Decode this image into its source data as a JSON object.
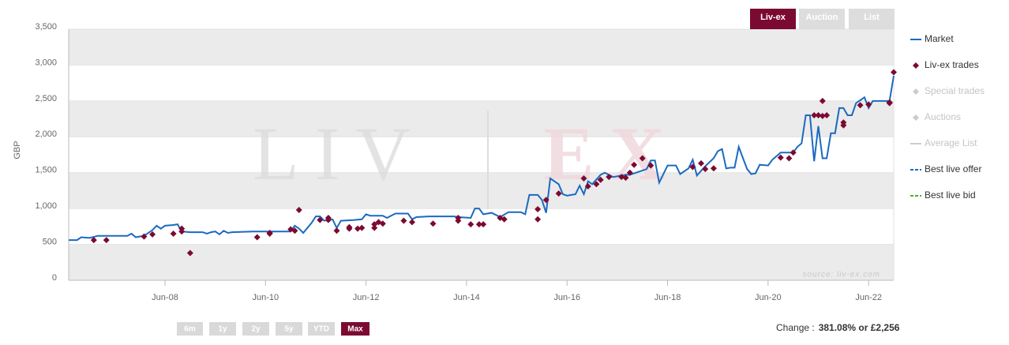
{
  "tabs": [
    "Liv-ex",
    "Auction",
    "List"
  ],
  "active_tab": 0,
  "ranges": [
    "6m",
    "1y",
    "2y",
    "5y",
    "YTD",
    "Max"
  ],
  "active_range": 5,
  "change": {
    "label": "Change :",
    "value": "381.08% or £2,256"
  },
  "chart_data": {
    "type": "line",
    "ylabel": "GBP",
    "watermark": [
      "LIV",
      "EX"
    ],
    "source": "source: liv-ex.com",
    "ylim": [
      0,
      3500
    ],
    "yticks": [
      0,
      500,
      {
        "value": 1000,
        "label": "1,000"
      },
      {
        "value": 1500,
        "label": "1,500"
      },
      {
        "value": 2000,
        "label": "2,000"
      },
      {
        "value": 2500,
        "label": "2,500"
      },
      {
        "value": 3000,
        "label": "3,000"
      },
      {
        "value": 3500,
        "label": "3,500"
      }
    ],
    "xlim": [
      "2006-07",
      "2022-12"
    ],
    "xticks": [
      {
        "value": "2008-06",
        "label": "Jun-08"
      },
      {
        "value": "2010-06",
        "label": "Jun-10"
      },
      {
        "value": "2012-06",
        "label": "Jun-12"
      },
      {
        "value": "2014-06",
        "label": "Jun-14"
      },
      {
        "value": "2016-06",
        "label": "Jun-16"
      },
      {
        "value": "2018-06",
        "label": "Jun-18"
      },
      {
        "value": "2020-06",
        "label": "Jun-20"
      },
      {
        "value": "2022-06",
        "label": "Jun-22"
      }
    ],
    "bands": "#ebebeb",
    "series": [
      {
        "name": "Market",
        "color": "#1b6ac0",
        "style": "line",
        "x": [
          "2006-07",
          "2006-09",
          "2006-10",
          "2006-12",
          "2007-02",
          "2007-09",
          "2007-10",
          "2007-11",
          "2008-01",
          "2008-03",
          "2008-04",
          "2008-05",
          "2008-06",
          "2008-08",
          "2008-09",
          "2008-10",
          "2008-12",
          "2009-03",
          "2009-04",
          "2009-05",
          "2009-06",
          "2009-07",
          "2009-08",
          "2009-09",
          "2009-10",
          "2010-03",
          "2010-05",
          "2010-12",
          "2011-01",
          "2011-02",
          "2011-03",
          "2011-05",
          "2011-06",
          "2011-07",
          "2011-08",
          "2011-10",
          "2011-11",
          "2011-12",
          "2012-03",
          "2012-05",
          "2012-06",
          "2012-07",
          "2012-10",
          "2012-11",
          "2013-01",
          "2013-04",
          "2013-05",
          "2013-06",
          "2013-09",
          "2014-03",
          "2014-04",
          "2014-07",
          "2014-08",
          "2014-09",
          "2014-10",
          "2014-12",
          "2015-02",
          "2015-04",
          "2015-07",
          "2015-08",
          "2015-09",
          "2015-11",
          "2015-12",
          "2016-01",
          "2016-02",
          "2016-04",
          "2016-05",
          "2016-06",
          "2016-08",
          "2016-09",
          "2016-10",
          "2016-11",
          "2016-12",
          "2017-02",
          "2017-03",
          "2017-05",
          "2017-08",
          "2017-09",
          "2017-11",
          "2018-01",
          "2018-02",
          "2018-03",
          "2018-04",
          "2018-06",
          "2018-08",
          "2018-09",
          "2018-11",
          "2018-12",
          "2019-01",
          "2019-03",
          "2019-05",
          "2019-06",
          "2019-07",
          "2019-08",
          "2019-09",
          "2019-10",
          "2019-11",
          "2020-01",
          "2020-02",
          "2020-03",
          "2020-04",
          "2020-06",
          "2020-07",
          "2020-09",
          "2020-12",
          "2021-01",
          "2021-02",
          "2021-03",
          "2021-04",
          "2021-05",
          "2021-06",
          "2021-07",
          "2021-08",
          "2021-09",
          "2021-10",
          "2021-11",
          "2021-12",
          "2022-01",
          "2022-02",
          "2022-03",
          "2022-05",
          "2022-06",
          "2022-07",
          "2022-10",
          "2022-11",
          "2022-12"
        ],
        "values": [
          560,
          560,
          600,
          590,
          620,
          620,
          650,
          600,
          620,
          700,
          760,
          720,
          760,
          770,
          780,
          680,
          670,
          670,
          650,
          670,
          680,
          640,
          690,
          660,
          670,
          680,
          680,
          680,
          760,
          720,
          660,
          800,
          890,
          890,
          830,
          850,
          730,
          830,
          840,
          850,
          920,
          900,
          900,
          870,
          930,
          930,
          850,
          880,
          890,
          890,
          880,
          870,
          1000,
          1000,
          920,
          940,
          880,
          950,
          950,
          920,
          1190,
          1190,
          1120,
          940,
          1420,
          1340,
          1200,
          1180,
          1200,
          1320,
          1200,
          1380,
          1340,
          1470,
          1500,
          1440,
          1470,
          1470,
          1510,
          1550,
          1670,
          1670,
          1360,
          1600,
          1600,
          1480,
          1560,
          1680,
          1460,
          1590,
          1700,
          1800,
          1830,
          1560,
          1570,
          1570,
          1860,
          1550,
          1480,
          1490,
          1610,
          1600,
          1680,
          1780,
          1780,
          1860,
          1910,
          2300,
          2300,
          1660,
          2150,
          1700,
          1700,
          2050,
          2050,
          2400,
          2400,
          2300,
          2300,
          2470,
          2550,
          2400,
          2500,
          2500,
          2500,
          2850
        ]
      },
      {
        "name": "Liv-ex trades",
        "color": "#7b0a32",
        "style": "diamond",
        "x": [
          "2007-01",
          "2007-04",
          "2008-01",
          "2008-03",
          "2008-08",
          "2008-10",
          "2008-10",
          "2008-12",
          "2010-04",
          "2010-07",
          "2010-07",
          "2010-12",
          "2011-01",
          "2011-02",
          "2011-07",
          "2011-09",
          "2011-09",
          "2011-11",
          "2012-02",
          "2012-02",
          "2012-04",
          "2012-05",
          "2012-08",
          "2012-08",
          "2012-09",
          "2012-10",
          "2013-03",
          "2013-05",
          "2013-10",
          "2014-04",
          "2014-04",
          "2014-07",
          "2014-09",
          "2014-10",
          "2015-02",
          "2015-03",
          "2015-11",
          "2015-11",
          "2016-01",
          "2016-04",
          "2016-10",
          "2016-11",
          "2017-01",
          "2017-02",
          "2017-04",
          "2017-07",
          "2017-08",
          "2017-09",
          "2017-10",
          "2017-12",
          "2018-02",
          "2018-12",
          "2019-02",
          "2019-03",
          "2019-05",
          "2020-09",
          "2020-11",
          "2020-12",
          "2021-05",
          "2021-06",
          "2021-07",
          "2021-07",
          "2021-08",
          "2021-12",
          "2021-12",
          "2022-04",
          "2022-06",
          "2022-11",
          "2022-11",
          "2022-12"
        ],
        "values": [
          560,
          560,
          610,
          640,
          650,
          680,
          720,
          380,
          600,
          660,
          650,
          710,
          690,
          980,
          840,
          840,
          870,
          690,
          720,
          740,
          720,
          730,
          730,
          780,
          810,
          790,
          830,
          810,
          790,
          830,
          870,
          780,
          780,
          780,
          870,
          850,
          990,
          850,
          1120,
          1210,
          1420,
          1310,
          1340,
          1400,
          1440,
          1440,
          1430,
          1500,
          1610,
          1700,
          1600,
          1580,
          1630,
          1550,
          1560,
          1710,
          1700,
          1780,
          2300,
          2300,
          2500,
          2290,
          2300,
          2160,
          2200,
          2440,
          2450,
          2480,
          2470,
          2900
        ]
      },
      {
        "name": "Special trades",
        "color": "#cccccc",
        "style": "diamond",
        "x": [],
        "values": []
      },
      {
        "name": "Auctions",
        "color": "#cccccc",
        "style": "diamond",
        "x": [],
        "values": []
      },
      {
        "name": "Average List",
        "color": "#cccccc",
        "style": "line",
        "x": [],
        "values": []
      },
      {
        "name": "Best live offer",
        "color": "#1b6ac0",
        "style": "dash",
        "x": [],
        "values": []
      },
      {
        "name": "Best live bid",
        "color": "#4caf22",
        "style": "dash",
        "x": [],
        "values": []
      }
    ]
  }
}
